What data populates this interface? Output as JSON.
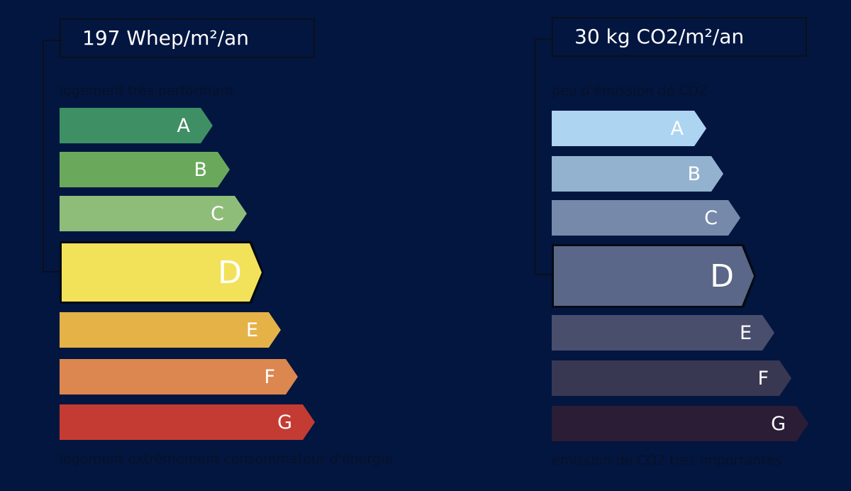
{
  "energy": {
    "value": "197 Whep/m²/an",
    "top_caption": "logement très performant",
    "bottom_caption": "logement extrêmement consommateur d'énergie",
    "current_class": "D",
    "bars": [
      {
        "letter": "A",
        "color": "#3f8f64"
      },
      {
        "letter": "B",
        "color": "#6aa95b"
      },
      {
        "letter": "C",
        "color": "#8ebd79"
      },
      {
        "letter": "D",
        "color": "#f2e25a"
      },
      {
        "letter": "E",
        "color": "#e5b248"
      },
      {
        "letter": "F",
        "color": "#dc8750"
      },
      {
        "letter": "G",
        "color": "#c43b33"
      }
    ]
  },
  "co2": {
    "value": "30 kg CO2/m²/an",
    "top_caption": "peu d'émission de CO2",
    "bottom_caption": "émission de CO2 très importantes",
    "current_class": "D",
    "bars": [
      {
        "letter": "A",
        "color": "#add4f1"
      },
      {
        "letter": "B",
        "color": "#93b2cf"
      },
      {
        "letter": "C",
        "color": "#7689aa"
      },
      {
        "letter": "D",
        "color": "#5b6788"
      },
      {
        "letter": "E",
        "color": "#4a4e6d"
      },
      {
        "letter": "F",
        "color": "#393852"
      },
      {
        "letter": "G",
        "color": "#2a1d35"
      }
    ]
  }
}
